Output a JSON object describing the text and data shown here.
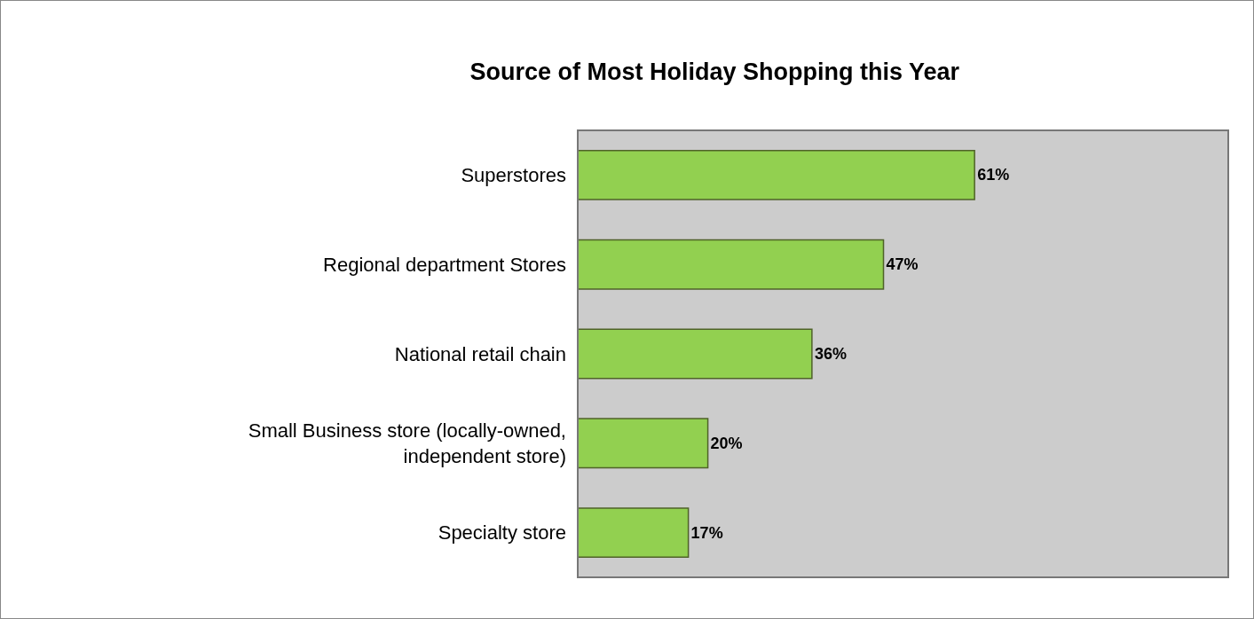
{
  "chart_data": {
    "type": "bar",
    "orientation": "horizontal",
    "title": "Source of Most Holiday Shopping this Year",
    "categories": [
      "Superstores",
      "Regional department Stores",
      "National retail chain",
      "Small Business store (locally-owned, independent store)",
      "Specialty store"
    ],
    "values": [
      61,
      47,
      36,
      20,
      17
    ],
    "value_labels": [
      "61%",
      "47%",
      "36%",
      "20%",
      "17%"
    ],
    "color": "#92d050",
    "xlim": [
      0,
      100
    ]
  }
}
